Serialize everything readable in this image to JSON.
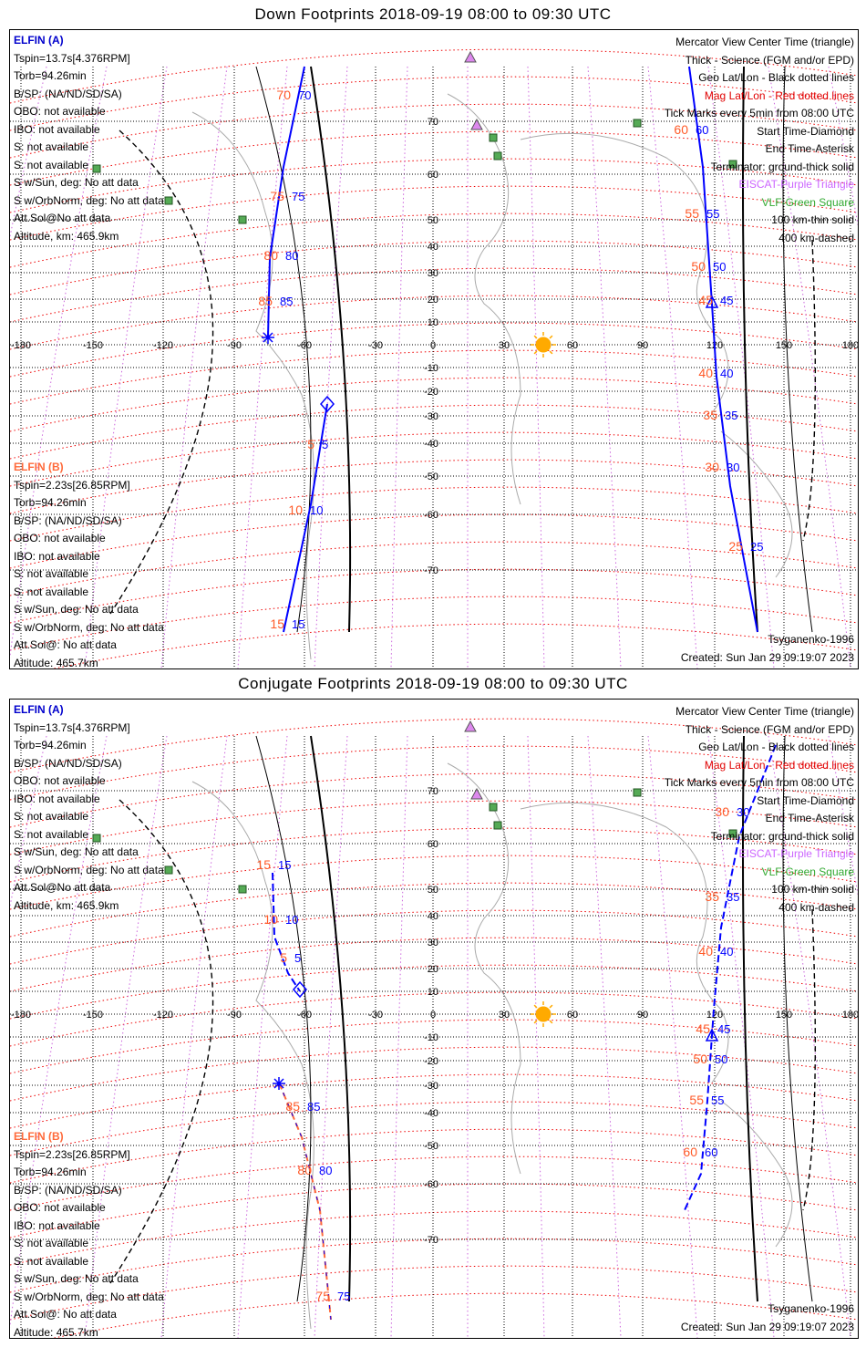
{
  "panels": [
    {
      "title": "Down Footprints 2018-09-19 08:00 to 09:30 UTC",
      "elfin_a": {
        "header": "ELFIN (A)",
        "lines": [
          "Tspin=13.7s[4.376RPM]",
          "Torb=94.26min",
          "B/SP: (NA/ND/SD/SA)",
          "OBO: not available",
          "IBO: not available",
          "S: not available",
          "S: not available",
          "S w/Sun, deg: No att data",
          "S w/OrbNorm, deg: No att data",
          "Att.Sol@No att data",
          "Altitude, km: 465.9km"
        ]
      },
      "elfin_b": {
        "header": "ELFIN (B)",
        "lines": [
          "Tspin=2.23s[26.85RPM]",
          "Torb=94.26min",
          "B/SP: (NA/ND/SD/SA)",
          "OBO: not available",
          "IBO: not available",
          "S: not available",
          "S: not available",
          "S w/Sun, deg: No att data",
          "S w/OrbNorm, deg: No att data",
          "Att.Sol@: No att data",
          "Altitude: 465.7km"
        ]
      },
      "track_a_labels": [
        "70",
        "75",
        "80",
        "85"
      ],
      "track_a2_labels": [
        "60",
        "55",
        "50",
        "45",
        "40",
        "35",
        "30",
        "25"
      ],
      "track_b_labels": [
        "5",
        "10",
        "15"
      ]
    },
    {
      "title": "Conjugate Footprints 2018-09-19 08:00 to 09:30 UTC",
      "elfin_a": {
        "header": "ELFIN (A)",
        "lines": [
          "Tspin=13.7s[4.376RPM]",
          "Torb=94.26min",
          "B/SP: (NA/ND/SD/SA)",
          "OBO: not available",
          "IBO: not available",
          "S: not available",
          "S: not available",
          "S w/Sun, deg: No att data",
          "S w/OrbNorm, deg: No att data",
          "Att.Sol@No att data",
          "Altitude, km: 465.9km"
        ]
      },
      "elfin_b": {
        "header": "ELFIN (B)",
        "lines": [
          "Tspin=2.23s[26.85RPM]",
          "Torb=94.26min",
          "B/SP: (NA/ND/SD/SA)",
          "OBO: not available",
          "IBO: not available",
          "S: not available",
          "S: not available",
          "S w/Sun, deg: No att data",
          "S w/OrbNorm, deg: No att data",
          "Att.Sol@: No att data",
          "Altitude: 465.7km"
        ]
      },
      "track_a_labels": [
        "15",
        "10",
        "5",
        "85",
        "80",
        "75"
      ],
      "track_a2_labels": [
        "30",
        "35",
        "40",
        "45",
        "50",
        "55",
        "60"
      ]
    }
  ],
  "legend": [
    {
      "text": "Mercator View Center Time (triangle)",
      "color": "#000000"
    },
    {
      "text": "Thick - Science (FGM and/or EPD)",
      "color": "#000000"
    },
    {
      "text": "Geo Lat/Lon - Black dotted lines",
      "color": "#000000"
    },
    {
      "text": "Mag Lat/Lon - Red dotted lines",
      "color": "#e00000"
    },
    {
      "text": "Tick Marks every 5min from 08:00 UTC",
      "color": "#000000"
    },
    {
      "text": "Start Time-Diamond",
      "color": "#000000"
    },
    {
      "text": "End Time-Asterisk",
      "color": "#000000"
    },
    {
      "text": "Terminator: ground-thick solid",
      "color": "#000000"
    },
    {
      "text": "EISCAT-Purple Triangle",
      "color": "#cc66ff"
    },
    {
      "text": "VLF-Green Square",
      "color": "#33aa33"
    },
    {
      "text": "100 km-thin solid",
      "color": "#000000"
    },
    {
      "text": "400 km-dashed",
      "color": "#000000"
    }
  ],
  "footer": {
    "model": "Tsyganenko-1996",
    "created": "Created: Sun Jan 29 09:19:07 2023"
  },
  "lon_ticks": [
    "-180",
    "-150",
    "-120",
    "-90",
    "-60",
    "-30",
    "0",
    "30",
    "60",
    "90",
    "120",
    "150",
    "180"
  ],
  "lat_ticks": [
    "70",
    "60",
    "50",
    "40",
    "30",
    "20",
    "10",
    "-10",
    "-20",
    "-30",
    "-40",
    "-50",
    "-60",
    "-70"
  ],
  "colors": {
    "track": "#0000ff",
    "track_label": "#ff5a28",
    "mag_grid": "#ee0000",
    "geo_grid": "#000000",
    "sun": "#ffaa00",
    "vlf": "#55aa55",
    "eiscat": "#dd88ee"
  }
}
